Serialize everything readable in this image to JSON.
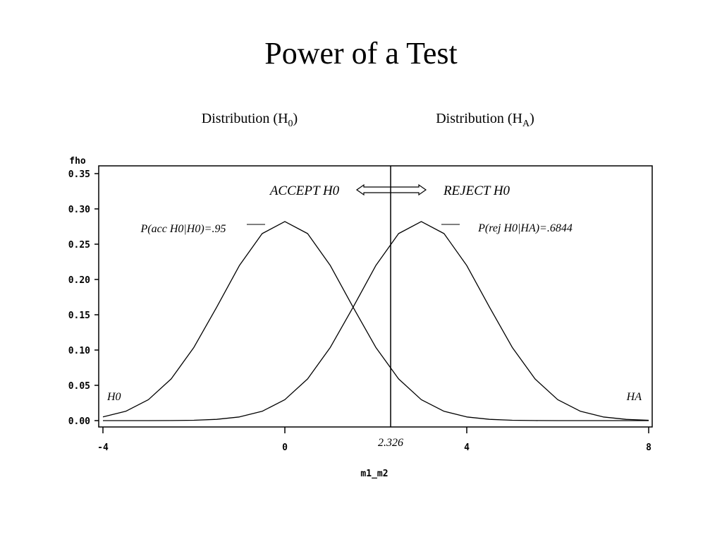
{
  "chart_data": {
    "type": "line",
    "title": "Power of a Test",
    "subtitles": [
      {
        "text": "Distribution (H",
        "sub": "0",
        "end": ")"
      },
      {
        "text": "Distribution (H",
        "sub": "A",
        "end": ")"
      }
    ],
    "y_label": "fho",
    "x_label": "m1_m2",
    "x": [
      -4,
      -3.5,
      -3,
      -2.5,
      -2,
      -1.5,
      -1,
      -0.5,
      0,
      0.5,
      1,
      1.5,
      2,
      2.5,
      3,
      3.5,
      4,
      4.5,
      5,
      5.5,
      6,
      6.5,
      7,
      7.5,
      8
    ],
    "series": [
      {
        "name": "H0",
        "color": "#000000",
        "values": [
          0.0052,
          0.0132,
          0.0297,
          0.0591,
          0.1038,
          0.1607,
          0.2197,
          0.265,
          0.2821,
          0.265,
          0.2197,
          0.1607,
          0.1038,
          0.0591,
          0.0297,
          0.0132,
          0.0052,
          0.0018,
          0.0005,
          0.0001,
          0,
          0,
          0,
          0,
          0
        ]
      },
      {
        "name": "HA",
        "color": "#000000",
        "values": [
          0,
          0,
          0,
          0.0001,
          0.0005,
          0.0018,
          0.0052,
          0.0132,
          0.0297,
          0.0591,
          0.1038,
          0.1607,
          0.2197,
          0.265,
          0.2821,
          0.265,
          0.2197,
          0.1607,
          0.1038,
          0.0591,
          0.0297,
          0.0132,
          0.0052,
          0.0018,
          0.0005
        ]
      }
    ],
    "critical_value": 2.326,
    "annotations": [
      "ACCEPT H0",
      "REJECT H0",
      "P(acc H0|H0)=.95",
      "P(rej H0|HA)=.6844"
    ],
    "xlim": [
      -4,
      8
    ],
    "xticks": [
      -4,
      0,
      4,
      8
    ],
    "ylim": [
      0,
      0.35
    ],
    "yticks": [
      {
        "value": 0,
        "label": "0.00"
      },
      {
        "value": 0.05,
        "label": "0.05"
      },
      {
        "value": 0.1,
        "label": "0.10"
      },
      {
        "value": 0.15,
        "label": "0.15"
      },
      {
        "value": 0.2,
        "label": "0.20"
      },
      {
        "value": 0.25,
        "label": "0.25"
      },
      {
        "value": 0.3,
        "label": "0.30"
      },
      {
        "value": 0.35,
        "label": "0.35"
      }
    ]
  }
}
